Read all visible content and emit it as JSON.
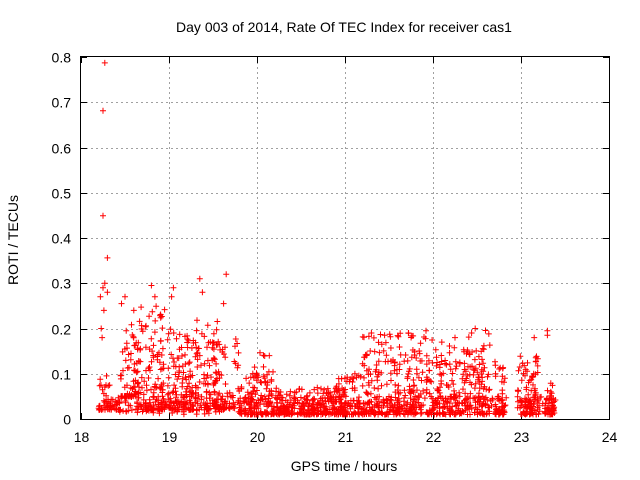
{
  "chart_data": {
    "type": "scatter",
    "title": "Day 003 of 2014, Rate Of TEC Index for receiver cas1",
    "xlabel": "GPS time / hours",
    "ylabel": "ROTI / TECUs",
    "xlim": [
      18,
      24
    ],
    "ylim": [
      0,
      0.8
    ],
    "xticks": [
      18,
      19,
      20,
      21,
      22,
      23,
      24
    ],
    "yticks": [
      0,
      0.1,
      0.2,
      0.3,
      0.4,
      0.5,
      0.6,
      0.7,
      0.8
    ],
    "yticklabels": [
      "0",
      "0.1",
      "0.2",
      "0.3",
      "0.4",
      "0.5",
      "0.6",
      "0.7",
      "0.8"
    ],
    "grid": true,
    "marker": "+",
    "color": "#ff0000",
    "series": [
      {
        "name": "cas1",
        "outliers": [
          [
            18.27,
            0.787
          ],
          [
            18.25,
            0.681
          ],
          [
            18.25,
            0.449
          ],
          [
            18.3,
            0.356
          ],
          [
            18.27,
            0.3
          ],
          [
            18.25,
            0.29
          ],
          [
            18.3,
            0.28
          ],
          [
            18.22,
            0.27
          ],
          [
            18.5,
            0.27
          ],
          [
            18.46,
            0.255
          ],
          [
            18.6,
            0.24
          ],
          [
            18.8,
            0.295
          ],
          [
            18.84,
            0.27
          ],
          [
            19.05,
            0.29
          ],
          [
            19.03,
            0.27
          ],
          [
            19.35,
            0.31
          ],
          [
            19.38,
            0.28
          ],
          [
            19.65,
            0.32
          ],
          [
            19.62,
            0.255
          ],
          [
            18.23,
            0.2
          ],
          [
            18.24,
            0.18
          ],
          [
            18.26,
            0.24
          ]
        ],
        "bands": [
          {
            "x0": 18.2,
            "x1": 18.35,
            "ymin": 0.02,
            "ymax": 0.1,
            "n": 40
          },
          {
            "x0": 18.35,
            "x1": 18.45,
            "ymin": 0.02,
            "ymax": 0.04,
            "n": 12
          },
          {
            "x0": 18.45,
            "x1": 18.7,
            "ymin": 0.05,
            "ymax": 0.22,
            "n": 60
          },
          {
            "x0": 18.6,
            "x1": 18.95,
            "ymin": 0.02,
            "ymax": 0.25,
            "n": 110
          },
          {
            "x0": 18.9,
            "x1": 19.25,
            "ymin": 0.02,
            "ymax": 0.2,
            "n": 110
          },
          {
            "x0": 19.2,
            "x1": 19.55,
            "ymin": 0.02,
            "ymax": 0.22,
            "n": 100
          },
          {
            "x0": 19.5,
            "x1": 19.8,
            "ymin": 0.02,
            "ymax": 0.18,
            "n": 80
          },
          {
            "x0": 19.8,
            "x1": 20.2,
            "ymin": 0.01,
            "ymax": 0.1,
            "n": 110
          },
          {
            "x0": 19.95,
            "x1": 20.2,
            "ymin": 0.08,
            "ymax": 0.15,
            "n": 20
          },
          {
            "x0": 20.2,
            "x1": 20.6,
            "ymin": 0.01,
            "ymax": 0.07,
            "n": 110
          },
          {
            "x0": 20.6,
            "x1": 21.0,
            "ymin": 0.01,
            "ymax": 0.07,
            "n": 110
          },
          {
            "x0": 20.9,
            "x1": 21.2,
            "ymin": 0.01,
            "ymax": 0.1,
            "n": 80
          },
          {
            "x0": 21.2,
            "x1": 21.6,
            "ymin": 0.01,
            "ymax": 0.19,
            "n": 130
          },
          {
            "x0": 21.6,
            "x1": 22.0,
            "ymin": 0.01,
            "ymax": 0.19,
            "n": 130
          },
          {
            "x0": 22.0,
            "x1": 22.4,
            "ymin": 0.01,
            "ymax": 0.17,
            "n": 120
          },
          {
            "x0": 22.4,
            "x1": 22.65,
            "ymin": 0.01,
            "ymax": 0.2,
            "n": 90
          },
          {
            "x0": 22.7,
            "x1": 22.82,
            "ymin": 0.01,
            "ymax": 0.14,
            "n": 45
          },
          {
            "x0": 22.95,
            "x1": 23.1,
            "ymin": 0.01,
            "ymax": 0.14,
            "n": 50
          },
          {
            "x0": 23.1,
            "x1": 23.2,
            "ymin": 0.01,
            "ymax": 0.14,
            "n": 40
          },
          {
            "x0": 23.27,
            "x1": 23.38,
            "ymin": 0.01,
            "ymax": 0.08,
            "n": 40
          }
        ],
        "peaks": [
          [
            23.3,
            0.195
          ],
          [
            23.3,
            0.185
          ],
          [
            23.15,
            0.18
          ],
          [
            22.48,
            0.2
          ],
          [
            21.92,
            0.195
          ],
          [
            21.72,
            0.19
          ],
          [
            21.45,
            0.185
          ],
          [
            21.3,
            0.19
          ],
          [
            22.25,
            0.18
          ],
          [
            22.1,
            0.17
          ]
        ]
      }
    ]
  }
}
